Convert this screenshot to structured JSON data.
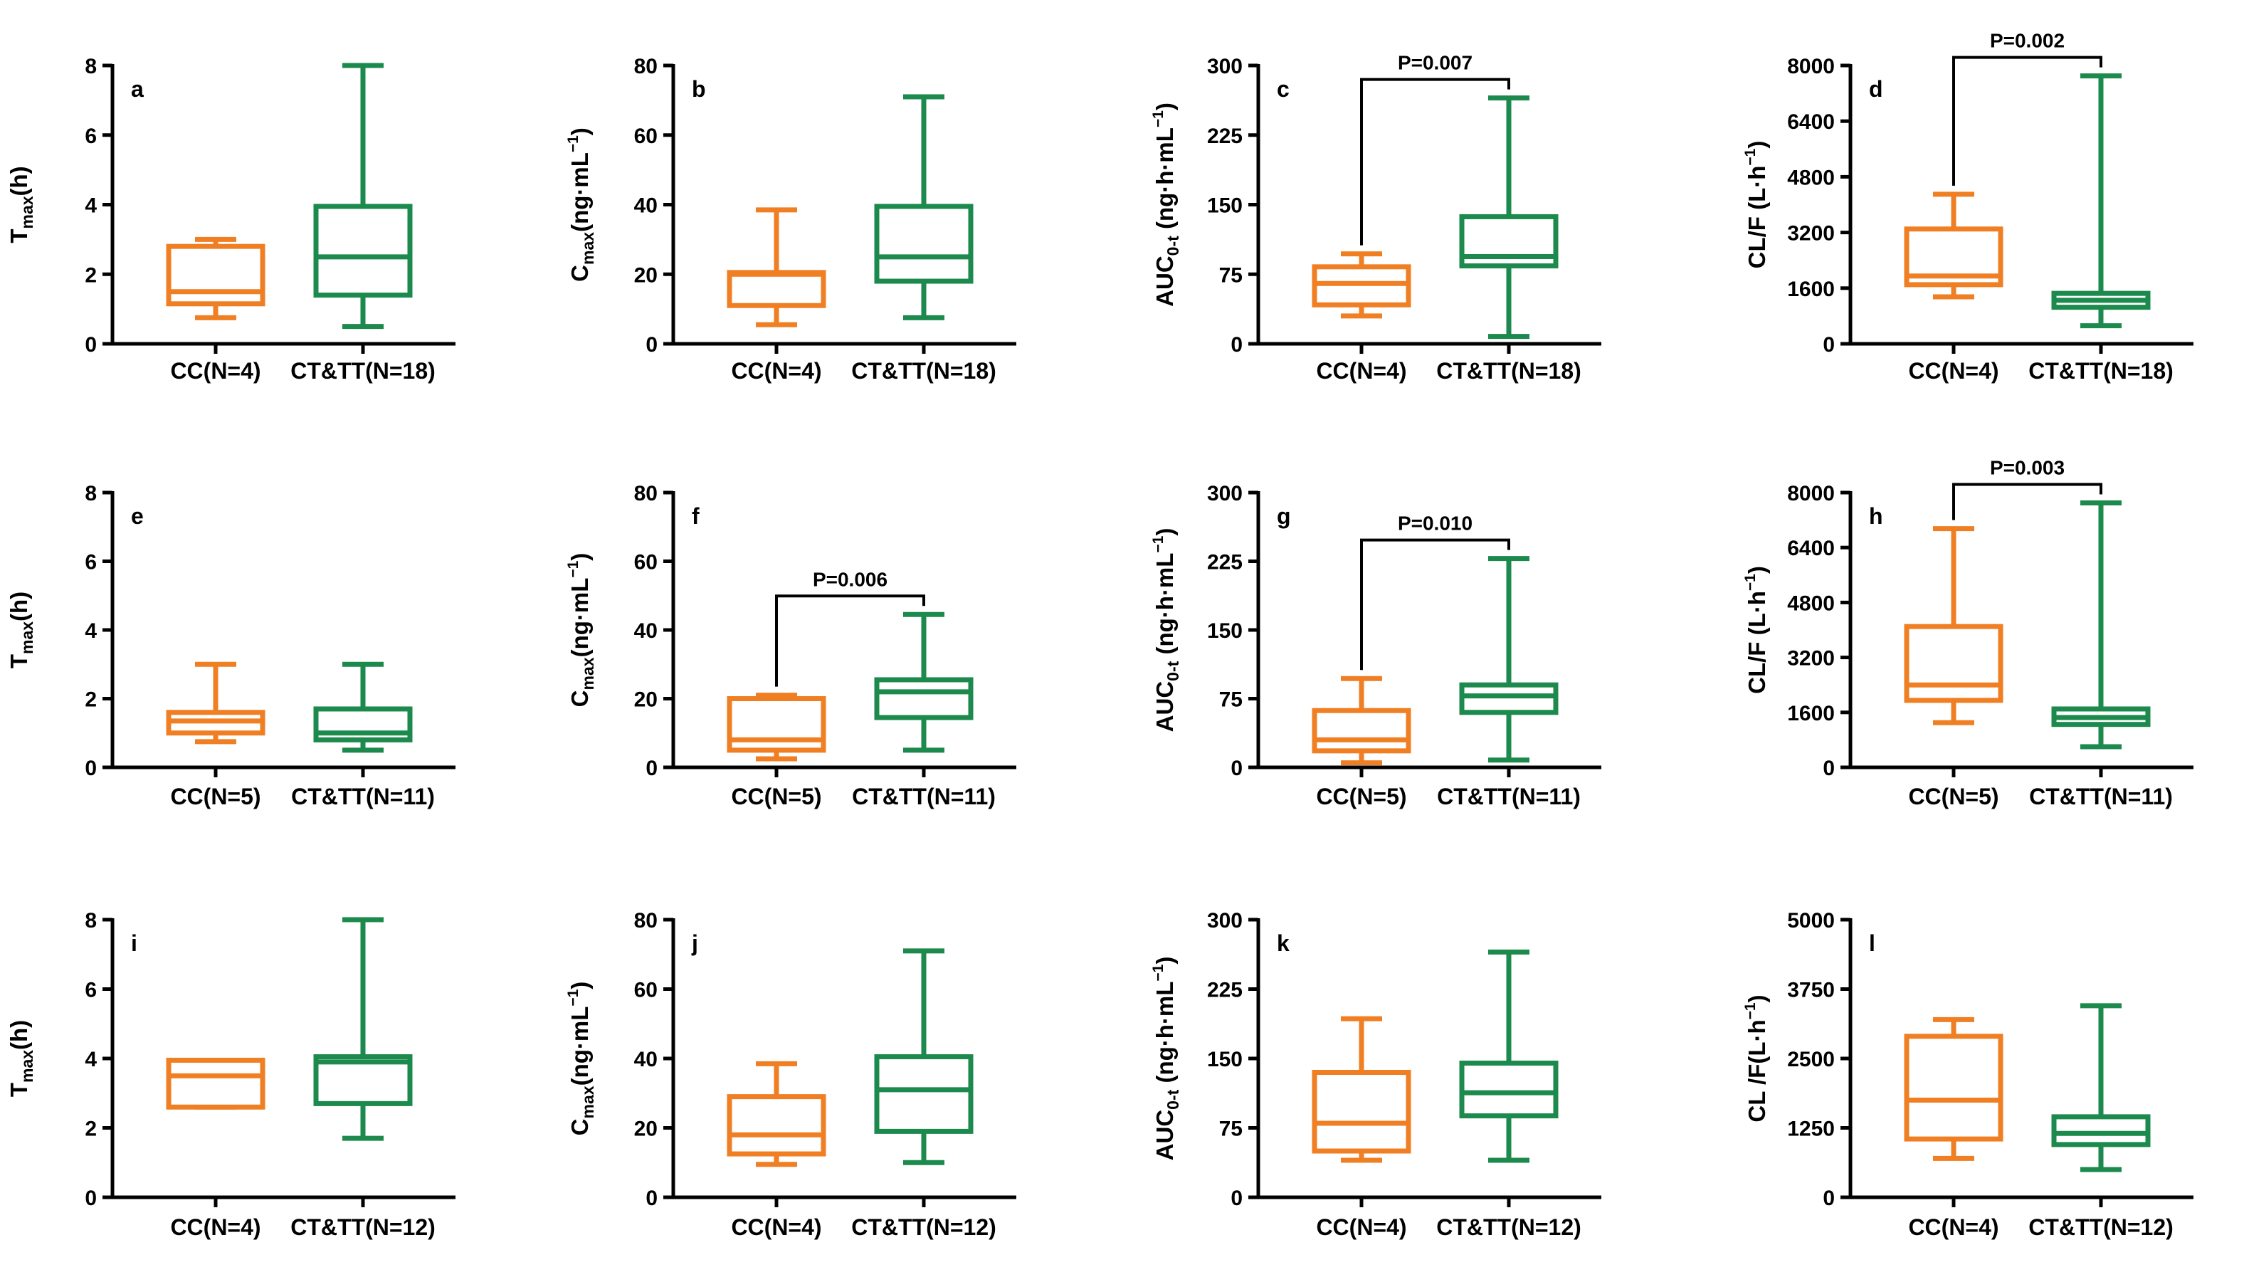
{
  "colors": {
    "CC": "#F07F24",
    "CT&TT": "#1B8A4C",
    "axis": "#000000"
  },
  "chart_data": [
    {
      "panel": "a",
      "type": "box",
      "ylabel": {
        "main": "T",
        "sub": "max",
        "rest": "(h)"
      },
      "ylim": [
        0,
        8
      ],
      "yticks": [
        "0",
        "2",
        "4",
        "6",
        "8"
      ],
      "categories": [
        "CC(N=4)",
        "CT&TT(N=18)"
      ],
      "boxes": [
        {
          "group": "CC",
          "min": 0.75,
          "q1": 1.15,
          "median": 1.5,
          "q3": 2.8,
          "max": 3.0
        },
        {
          "group": "CT&TT",
          "min": 0.5,
          "q1": 1.4,
          "median": 2.5,
          "q3": 3.95,
          "max": 8.0
        }
      ],
      "pvalue": ""
    },
    {
      "panel": "b",
      "type": "box",
      "ylabel": {
        "main": "C",
        "sub": "max",
        "rest": "(ng·mL",
        "sup": "−1",
        "close": ")"
      },
      "ylim": [
        0,
        80
      ],
      "yticks": [
        "0",
        "20",
        "40",
        "60",
        "80"
      ],
      "categories": [
        "CC(N=4)",
        "CT&TT(N=18)"
      ],
      "boxes": [
        {
          "group": "CC",
          "min": 5.5,
          "q1": 11,
          "median": 20,
          "q3": 20.5,
          "max": 38.5
        },
        {
          "group": "CT&TT",
          "min": 7.5,
          "q1": 18,
          "median": 25,
          "q3": 39.5,
          "max": 71
        }
      ],
      "pvalue": ""
    },
    {
      "panel": "c",
      "type": "box",
      "ylabel": {
        "main": "AUC",
        "sub": "0-t",
        "rest": " (ng·h·mL",
        "sup": "−1",
        "close": ")"
      },
      "ylim": [
        0,
        300
      ],
      "yticks": [
        "0",
        "75",
        "150",
        "225",
        "300"
      ],
      "categories": [
        "CC(N=4)",
        "CT&TT(N=18)"
      ],
      "boxes": [
        {
          "group": "CC",
          "min": 30,
          "q1": 42,
          "median": 65,
          "q3": 83,
          "max": 97
        },
        {
          "group": "CT&TT",
          "min": 8,
          "q1": 84,
          "median": 94,
          "q3": 137,
          "max": 265
        }
      ],
      "pvalue": "P=0.007"
    },
    {
      "panel": "d",
      "type": "box",
      "ylabel": {
        "main": "CL/F (L·h",
        "sup": "−1",
        "close": ")"
      },
      "ylim": [
        0,
        8000
      ],
      "yticks": [
        "0",
        "1600",
        "3200",
        "4800",
        "6400",
        "8000"
      ],
      "categories": [
        "CC(N=4)",
        "CT&TT(N=18)"
      ],
      "boxes": [
        {
          "group": "CC",
          "min": 1350,
          "q1": 1700,
          "median": 1950,
          "q3": 3300,
          "max": 4300
        },
        {
          "group": "CT&TT",
          "min": 520,
          "q1": 1050,
          "median": 1250,
          "q3": 1450,
          "max": 7700
        }
      ],
      "pvalue": "P=0.002"
    },
    {
      "panel": "e",
      "type": "box",
      "ylabel": {
        "main": "T",
        "sub": "max",
        "rest": "(h)"
      },
      "ylim": [
        0,
        8
      ],
      "yticks": [
        "0",
        "2",
        "4",
        "6",
        "8"
      ],
      "categories": [
        "CC(N=5)",
        "CT&TT(N=11)"
      ],
      "boxes": [
        {
          "group": "CC",
          "min": 0.75,
          "q1": 1.0,
          "median": 1.35,
          "q3": 1.6,
          "max": 3.0
        },
        {
          "group": "CT&TT",
          "min": 0.5,
          "q1": 0.8,
          "median": 1.0,
          "q3": 1.7,
          "max": 3.0
        }
      ],
      "pvalue": ""
    },
    {
      "panel": "f",
      "type": "box",
      "ylabel": {
        "main": "C",
        "sub": "max",
        "rest": "(ng·mL",
        "sup": "−1",
        "close": ")"
      },
      "ylim": [
        0,
        80
      ],
      "yticks": [
        "0",
        "20",
        "40",
        "60",
        "80"
      ],
      "categories": [
        "CC(N=5)",
        "CT&TT(N=11)"
      ],
      "boxes": [
        {
          "group": "CC",
          "min": 2.5,
          "q1": 5,
          "median": 8,
          "q3": 20,
          "max": 21
        },
        {
          "group": "CT&TT",
          "min": 5,
          "q1": 14.5,
          "median": 22,
          "q3": 25.5,
          "max": 44.5
        }
      ],
      "pvalue": "P=0.006"
    },
    {
      "panel": "g",
      "type": "box",
      "ylabel": {
        "main": "AUC",
        "sub": "0-t",
        "rest": " (ng·h·mL",
        "sup": "−1",
        "close": ")"
      },
      "ylim": [
        0,
        300
      ],
      "yticks": [
        "0",
        "75",
        "150",
        "225",
        "300"
      ],
      "categories": [
        "CC(N=5)",
        "CT&TT(N=11)"
      ],
      "boxes": [
        {
          "group": "CC",
          "min": 5,
          "q1": 18,
          "median": 30,
          "q3": 62,
          "max": 97
        },
        {
          "group": "CT&TT",
          "min": 8,
          "q1": 60,
          "median": 78,
          "q3": 90,
          "max": 228
        }
      ],
      "pvalue": "P=0.010"
    },
    {
      "panel": "h",
      "type": "box",
      "ylabel": {
        "main": "CL/F (L·h",
        "sup": "−1",
        "close": ")"
      },
      "ylim": [
        0,
        8000
      ],
      "yticks": [
        "0",
        "1600",
        "3200",
        "4800",
        "6400",
        "8000"
      ],
      "categories": [
        "CC(N=5)",
        "CT&TT(N=11)"
      ],
      "boxes": [
        {
          "group": "CC",
          "min": 1300,
          "q1": 1950,
          "median": 2400,
          "q3": 4100,
          "max": 6950
        },
        {
          "group": "CT&TT",
          "min": 600,
          "q1": 1250,
          "median": 1450,
          "q3": 1700,
          "max": 7700
        }
      ],
      "pvalue": "P=0.003"
    },
    {
      "panel": "i",
      "type": "box",
      "ylabel": {
        "main": "T",
        "sub": "max",
        "rest": "(h)"
      },
      "ylim": [
        0,
        8
      ],
      "yticks": [
        "0",
        "2",
        "4",
        "6",
        "8"
      ],
      "categories": [
        "CC(N=4)",
        "CT&TT(N=12)"
      ],
      "boxes": [
        {
          "group": "CC",
          "min": 2.6,
          "q1": 2.6,
          "median": 3.5,
          "q3": 3.95,
          "max": 3.95
        },
        {
          "group": "CT&TT",
          "min": 1.7,
          "q1": 2.7,
          "median": 3.9,
          "q3": 4.05,
          "max": 8.0
        }
      ],
      "pvalue": ""
    },
    {
      "panel": "j",
      "type": "box",
      "ylabel": {
        "main": "C",
        "sub": "max",
        "rest": "(ng·mL",
        "sup": "−1",
        "close": ")"
      },
      "ylim": [
        0,
        80
      ],
      "yticks": [
        "0",
        "20",
        "40",
        "60",
        "80"
      ],
      "categories": [
        "CC(N=4)",
        "CT&TT(N=12)"
      ],
      "boxes": [
        {
          "group": "CC",
          "min": 9.5,
          "q1": 12.5,
          "median": 18,
          "q3": 29,
          "max": 38.5
        },
        {
          "group": "CT&TT",
          "min": 10,
          "q1": 19,
          "median": 31,
          "q3": 40.5,
          "max": 71
        }
      ],
      "pvalue": ""
    },
    {
      "panel": "k",
      "type": "box",
      "ylabel": {
        "main": "AUC",
        "sub": "0-t",
        "rest": " (ng·h·mL",
        "sup": "−1",
        "close": ")"
      },
      "ylim": [
        0,
        300
      ],
      "yticks": [
        "0",
        "75",
        "150",
        "225",
        "300"
      ],
      "categories": [
        "CC(N=4)",
        "CT&TT(N=12)"
      ],
      "boxes": [
        {
          "group": "CC",
          "min": 40,
          "q1": 50,
          "median": 80,
          "q3": 135,
          "max": 193
        },
        {
          "group": "CT&TT",
          "min": 40,
          "q1": 88,
          "median": 113,
          "q3": 145,
          "max": 265
        }
      ],
      "pvalue": ""
    },
    {
      "panel": "l",
      "type": "box",
      "ylabel": {
        "main": "CL /F(L·h",
        "sup": "−1",
        "close": ")"
      },
      "ylim": [
        0,
        5000
      ],
      "yticks": [
        "0",
        "1250",
        "2500",
        "3750",
        "5000"
      ],
      "categories": [
        "CC(N=4)",
        "CT&TT(N=12)"
      ],
      "boxes": [
        {
          "group": "CC",
          "min": 700,
          "q1": 1050,
          "median": 1750,
          "q3": 2900,
          "max": 3200
        },
        {
          "group": "CT&TT",
          "min": 500,
          "q1": 950,
          "median": 1150,
          "q3": 1450,
          "max": 3450
        }
      ],
      "pvalue": ""
    }
  ]
}
